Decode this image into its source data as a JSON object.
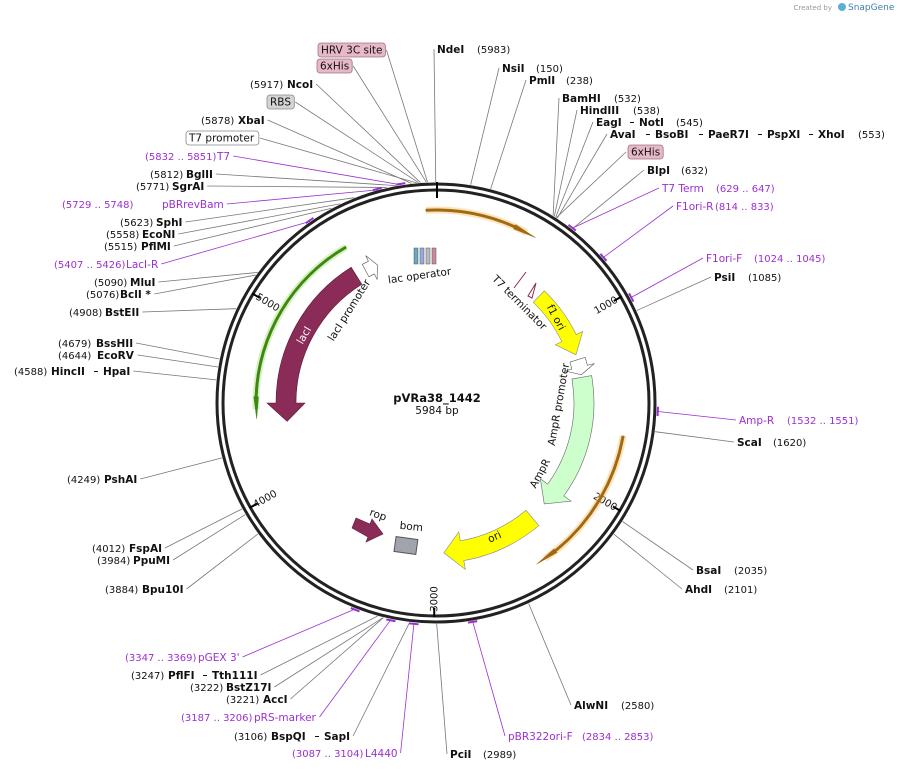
{
  "credit": {
    "prefix": "Created by",
    "brand": "SnapGene"
  },
  "plasmid": {
    "name": "pVRa38_1442",
    "size": "5984 bp"
  },
  "ticks": [
    "1000",
    "2000",
    "3000",
    "4000",
    "5000"
  ],
  "enzymes": [
    {
      "names": [
        "NdeI"
      ],
      "pos": "(5983)"
    },
    {
      "names": [
        "NsiI"
      ],
      "pos": "(150)"
    },
    {
      "names": [
        "PmlI"
      ],
      "pos": "(238)"
    },
    {
      "names": [
        "BamHI"
      ],
      "pos": "(532)"
    },
    {
      "names": [
        "HindIII"
      ],
      "pos": "(538)"
    },
    {
      "names": [
        "EagI",
        "NotI"
      ],
      "pos": "(545)"
    },
    {
      "names": [
        "AvaI",
        "BsoBI",
        "PaeR7I",
        "PspXI",
        "XhoI"
      ],
      "pos": "(553)"
    },
    {
      "names": [
        "BlpI"
      ],
      "pos": "(632)"
    },
    {
      "names": [
        "PsiI"
      ],
      "pos": "(1085)"
    },
    {
      "names": [
        "ScaI"
      ],
      "pos": "(1620)"
    },
    {
      "names": [
        "BsaI"
      ],
      "pos": "(2035)"
    },
    {
      "names": [
        "AhdI"
      ],
      "pos": "(2101)"
    },
    {
      "names": [
        "AlwNI"
      ],
      "pos": "(2580)"
    },
    {
      "names": [
        "PciI"
      ],
      "pos": "(2989)"
    },
    {
      "names": [
        "NcoI"
      ],
      "pos": "(5917)"
    },
    {
      "names": [
        "XbaI"
      ],
      "pos": "(5878)"
    },
    {
      "names": [
        "BglII"
      ],
      "pos": "(5812)"
    },
    {
      "names": [
        "SgrAI"
      ],
      "pos": "(5771)"
    },
    {
      "names": [
        "SphI"
      ],
      "pos": "(5623)"
    },
    {
      "names": [
        "EcoNI"
      ],
      "pos": "(5558)"
    },
    {
      "names": [
        "PflMI"
      ],
      "pos": "(5515)"
    },
    {
      "names": [
        "MluI"
      ],
      "pos": "(5090)"
    },
    {
      "names": [
        "BclI *"
      ],
      "pos": "(5076)"
    },
    {
      "names": [
        "BstEII"
      ],
      "pos": "(4908)"
    },
    {
      "names": [
        "BssHII"
      ],
      "pos": "(4679)"
    },
    {
      "names": [
        "EcoRV"
      ],
      "pos": "(4644)"
    },
    {
      "names": [
        "HincII",
        "HpaI"
      ],
      "pos": "(4588)"
    },
    {
      "names": [
        "PshAI"
      ],
      "pos": "(4249)"
    },
    {
      "names": [
        "FspAI"
      ],
      "pos": "(4012)"
    },
    {
      "names": [
        "PpuMI"
      ],
      "pos": "(3984)"
    },
    {
      "names": [
        "Bpu10I"
      ],
      "pos": "(3884)"
    },
    {
      "names": [
        "PflFI",
        "Tth111I"
      ],
      "pos": "(3247)"
    },
    {
      "names": [
        "BstZ17I"
      ],
      "pos": "(3222)"
    },
    {
      "names": [
        "AccI"
      ],
      "pos": "(3221)"
    },
    {
      "names": [
        "BspQI",
        "SapI"
      ],
      "pos": "(3106)"
    }
  ],
  "primers": [
    {
      "name": "T7 Term",
      "range": "(629 .. 647)"
    },
    {
      "name": "F1ori-R",
      "range": "(814 .. 833)"
    },
    {
      "name": "F1ori-F",
      "range": "(1024 .. 1045)"
    },
    {
      "name": "Amp-R",
      "range": "(1532 .. 1551)"
    },
    {
      "name": "pBR322ori-F",
      "range": "(2834 .. 2853)"
    },
    {
      "name": "T7",
      "range": "(5832 .. 5851)"
    },
    {
      "name": "pBRrevBam",
      "range": "(5729 .. 5748)"
    },
    {
      "name": "LacI-R",
      "range": "(5407 .. 5426)"
    },
    {
      "name": "pGEX 3'",
      "range": "(3347 .. 3369)"
    },
    {
      "name": "pRS-marker",
      "range": "(3187 .. 3206)"
    },
    {
      "name": "L4440",
      "range": "(3087 .. 3104)"
    }
  ],
  "tags": [
    "HRV 3C site",
    "6xHis",
    "RBS",
    "T7 promoter",
    "6xHis"
  ],
  "features": [
    "lac operator",
    "T7 terminator",
    "f1 ori",
    "AmpR promoter",
    "AmpR",
    "ori",
    "bom",
    "rop",
    "lacI",
    "lacI promoter"
  ]
}
